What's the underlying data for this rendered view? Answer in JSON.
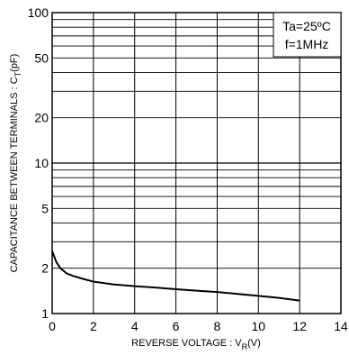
{
  "chart_data": {
    "type": "line",
    "xlabel": "REVERSE VOLTAGE : V",
    "xlabel_sub": "R",
    "xlabel_unit": "(V)",
    "ylabel": "CAPACITANCE BETWEEN TERMINALS : C",
    "ylabel_sub": "T",
    "ylabel_unit": "(pF)",
    "xlim": [
      0,
      14
    ],
    "ylim": [
      1,
      100
    ],
    "y_scale": "log",
    "x_ticks": [
      "0",
      "2",
      "4",
      "6",
      "8",
      "10",
      "12",
      "14"
    ],
    "x_tick_values": [
      0,
      2,
      4,
      6,
      8,
      10,
      12,
      14
    ],
    "y_ticks": [
      "1",
      "2",
      "5",
      "10",
      "20",
      "50",
      "100"
    ],
    "y_tick_values": [
      1,
      2,
      5,
      10,
      20,
      50,
      100
    ],
    "grid": true,
    "annotations": [
      "Ta=25ºC",
      "f=1MHz"
    ],
    "series": [
      {
        "x": [
          0,
          0.2,
          0.4,
          0.7,
          1,
          1.5,
          2,
          3,
          4,
          5,
          6,
          7,
          8,
          9,
          10,
          11,
          12
        ],
        "y": [
          2.6,
          2.2,
          2.0,
          1.85,
          1.78,
          1.7,
          1.63,
          1.56,
          1.52,
          1.49,
          1.45,
          1.42,
          1.39,
          1.35,
          1.31,
          1.27,
          1.22
        ]
      }
    ]
  }
}
